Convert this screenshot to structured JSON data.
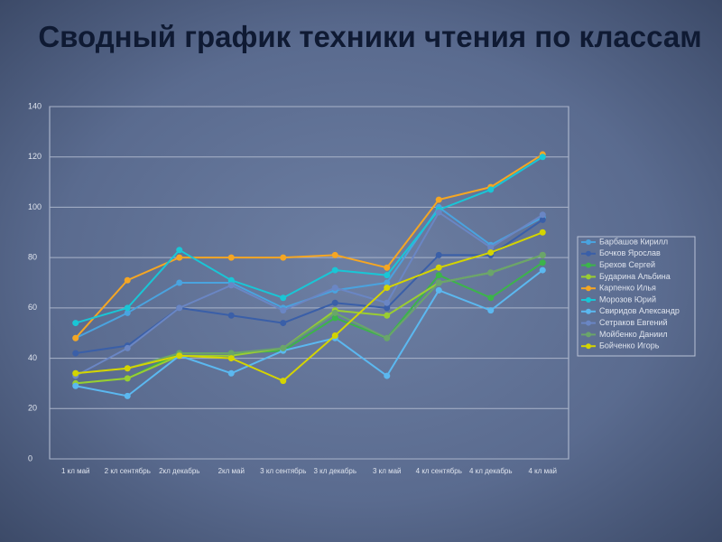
{
  "chart_data": {
    "type": "line",
    "title": "Сводный график техники чтения по классам",
    "categories": [
      "1 кл май",
      "2 кл сентябрь",
      "2кл декабрь",
      "2кл май",
      "3 кл сентябрь",
      "3 кл декабрь",
      "3 кл май",
      "4 кл сентябрь",
      "4 кл декабрь",
      "4 кл май"
    ],
    "ylim": [
      0,
      140
    ],
    "yticks": [
      0,
      20,
      40,
      60,
      80,
      100,
      120,
      140
    ],
    "grid": true,
    "legend": "right",
    "series": [
      {
        "name": "Барбашов Кирилл",
        "color": "#4aa3df",
        "values": [
          48,
          58,
          70,
          70,
          60,
          67,
          70,
          100,
          85,
          96
        ]
      },
      {
        "name": "Бочков Ярослав",
        "color": "#3a5fa8",
        "values": [
          42,
          45,
          60,
          57,
          54,
          62,
          60,
          81,
          81,
          95
        ]
      },
      {
        "name": "Брехов Сергей",
        "color": "#3cb44b",
        "values": [
          30,
          32,
          42,
          42,
          43,
          56,
          48,
          73,
          64,
          78
        ]
      },
      {
        "name": "Бударина Альбина",
        "color": "#9acd32",
        "values": [
          30,
          32,
          41,
          41,
          44,
          59,
          57,
          70,
          74,
          81
        ]
      },
      {
        "name": "Карпенко Илья",
        "color": "#f5a623",
        "values": [
          48,
          71,
          80,
          80,
          80,
          81,
          76,
          103,
          108,
          121
        ]
      },
      {
        "name": "Морозов Юрий",
        "color": "#19c6d6",
        "values": [
          54,
          60,
          83,
          71,
          64,
          75,
          73,
          99,
          107,
          120
        ]
      },
      {
        "name": "Свиридов Александр",
        "color": "#5bb8f0",
        "values": [
          29,
          25,
          41,
          34,
          43,
          48,
          33,
          67,
          59,
          75
        ]
      },
      {
        "name": "Сетраков Евгений",
        "color": "#6a86c4",
        "values": [
          33,
          44,
          60,
          69,
          59,
          68,
          62,
          98,
          84,
          97
        ]
      },
      {
        "name": "Мойбенко Даниил",
        "color": "#6aa56a",
        "values": [
          34,
          36,
          42,
          42,
          44,
          58,
          48,
          70,
          74,
          81
        ]
      },
      {
        "name": "Бойченко Игорь",
        "color": "#d4d400",
        "values": [
          34,
          36,
          41,
          40,
          31,
          49,
          68,
          76,
          82,
          90
        ]
      }
    ]
  }
}
